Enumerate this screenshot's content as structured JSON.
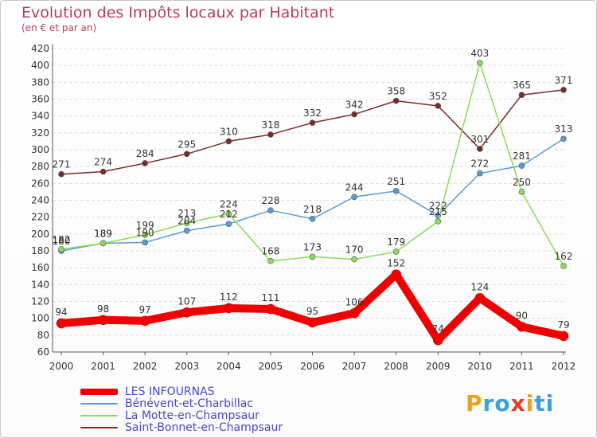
{
  "title": "Evolution des Impôts locaux par Habitant",
  "subtitle": "(en € et par an)",
  "brand": {
    "text": "Proxiti",
    "letter_colors": [
      "#f0a01e",
      "#3aa0e0",
      "#3aa0e0",
      "#e04030",
      "#f0a01e",
      "#3aa0e0",
      "#3aa0e0"
    ]
  },
  "chart_data": {
    "type": "line",
    "categories": [
      "2000",
      "2001",
      "2002",
      "2003",
      "2004",
      "2005",
      "2006",
      "2007",
      "2008",
      "2009",
      "2010",
      "2011",
      "2012"
    ],
    "ylim": [
      60,
      420
    ],
    "yticks": [
      "60",
      "80",
      "100",
      "120",
      "140",
      "160",
      "180",
      "200",
      "220",
      "240",
      "260",
      "280",
      "300",
      "320",
      "340",
      "360",
      "380",
      "400",
      "420"
    ],
    "grid": true,
    "legend_position": "bottom-left",
    "series": [
      {
        "name": "LES INFOURNAS",
        "color": "#ee0000",
        "thick": true,
        "values": [
          94,
          98,
          97,
          107,
          112,
          111,
          95,
          106,
          152,
          74,
          124,
          90,
          79
        ]
      },
      {
        "name": "Bénévent-et-Charbillac",
        "color": "#5b9bd5",
        "thick": false,
        "values": [
          180,
          189,
          190,
          204,
          212,
          228,
          218,
          244,
          251,
          222,
          272,
          281,
          313
        ]
      },
      {
        "name": "La Motte-en-Champsaur",
        "color": "#88dd55",
        "thick": false,
        "values": [
          182,
          189,
          199,
          213,
          224,
          168,
          173,
          170,
          179,
          215,
          403,
          250,
          162
        ]
      },
      {
        "name": "Saint-Bonnet-en-Champsaur",
        "color": "#7a2a2a",
        "thick": false,
        "values": [
          271,
          274,
          284,
          295,
          310,
          318,
          332,
          342,
          358,
          352,
          301,
          365,
          371
        ]
      }
    ],
    "point_labels": [
      [
        "94",
        "98",
        "97",
        "107",
        "112",
        "111",
        "95",
        "106",
        "152",
        "74",
        "124",
        "90",
        "79"
      ],
      [
        "180",
        "189",
        "190",
        "204",
        "212",
        "228",
        "218",
        "244",
        "251",
        "222",
        "272",
        "281",
        "313"
      ],
      [
        "182",
        "189",
        "199",
        "213",
        "224",
        "168",
        "173",
        "170",
        "179",
        "215",
        "403",
        "250",
        "162"
      ],
      [
        "271",
        "274",
        "284",
        "295",
        "310",
        "318",
        "332",
        "342",
        "358",
        "352",
        "301",
        "365",
        "371"
      ]
    ]
  }
}
